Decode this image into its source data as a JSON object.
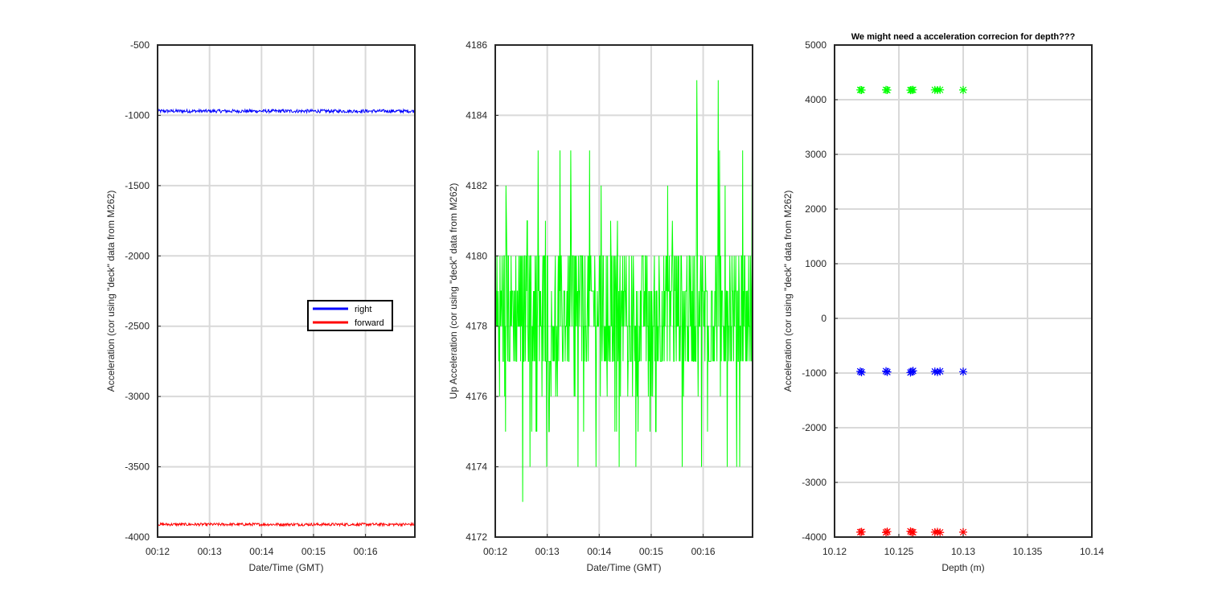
{
  "colors": {
    "right": "#0000ff",
    "forward": "#ff0000",
    "up": "#00ff00",
    "grid": "#d9d9d9",
    "axis": "#262626"
  },
  "chart_data": [
    {
      "type": "line",
      "title": "",
      "xlabel": "Date/Time (GMT)",
      "ylabel": "Acceleration (cor using \"deck\" data from M262)",
      "xticklabels": [
        "00:12",
        "00:13",
        "00:14",
        "00:15",
        "00:16"
      ],
      "yticks": [
        -4000,
        -3500,
        -3000,
        -2500,
        -2000,
        -1500,
        -1000,
        -500
      ],
      "xlim": [
        0,
        4.95
      ],
      "ylim": [
        -4000,
        -500
      ],
      "grid": true,
      "legend": {
        "position": "center-right",
        "entries": [
          "right",
          "forward"
        ]
      },
      "series": [
        {
          "name": "right",
          "color": "#0000ff",
          "level": -970,
          "noise": 12
        },
        {
          "name": "forward",
          "color": "#ff0000",
          "level": -3910,
          "noise": 10
        }
      ]
    },
    {
      "type": "line",
      "title": "",
      "xlabel": "Date/Time (GMT)",
      "ylabel": "Up Acceleration (cor using \"deck\" data from M262)",
      "xticklabels": [
        "00:12",
        "00:13",
        "00:14",
        "00:15",
        "00:16"
      ],
      "yticks": [
        4172,
        4174,
        4176,
        4178,
        4180,
        4182,
        4184,
        4186
      ],
      "xlim": [
        0,
        4.95
      ],
      "ylim": [
        4172,
        4186
      ],
      "grid": true,
      "series": [
        {
          "name": "up",
          "color": "#00ff00",
          "range": [
            4173,
            4185
          ]
        }
      ]
    },
    {
      "type": "scatter",
      "title": "We might need a acceleration correcion for depth???",
      "xlabel": "Depth (m)",
      "ylabel": "Acceleration (cor using \"deck\" data from M262)",
      "xticks": [
        10.12,
        10.125,
        10.13,
        10.135,
        10.14
      ],
      "yticks": [
        -4000,
        -3000,
        -2000,
        -1000,
        0,
        1000,
        2000,
        3000,
        4000,
        5000
      ],
      "xlim": [
        10.12,
        10.14
      ],
      "ylim": [
        -4000,
        5000
      ],
      "grid": true,
      "marker": "asterisk",
      "series": [
        {
          "name": "up",
          "color": "#00ff00",
          "x": [
            10.122,
            10.1221,
            10.124,
            10.1241,
            10.126,
            10.1261,
            10.1259,
            10.1278,
            10.128,
            10.1282,
            10.13
          ],
          "y": [
            4179,
            4177,
            4180,
            4176,
            4178,
            4181,
            4175,
            4179,
            4177,
            4180,
            4178
          ]
        },
        {
          "name": "right",
          "color": "#0000ff",
          "x": [
            10.122,
            10.1221,
            10.124,
            10.1241,
            10.126,
            10.1261,
            10.1259,
            10.1278,
            10.128,
            10.1282,
            10.13
          ],
          "y": [
            -970,
            -985,
            -965,
            -980,
            -975,
            -960,
            -990,
            -972,
            -982,
            -968,
            -975
          ]
        },
        {
          "name": "forward",
          "color": "#ff0000",
          "x": [
            10.122,
            10.1221,
            10.124,
            10.1241,
            10.126,
            10.1261,
            10.1259,
            10.1278,
            10.128,
            10.1282,
            10.13
          ],
          "y": [
            -3910,
            -3905,
            -3915,
            -3900,
            -3908,
            -3912,
            -3895,
            -3910,
            -3905,
            -3915,
            -3910
          ]
        }
      ]
    }
  ]
}
